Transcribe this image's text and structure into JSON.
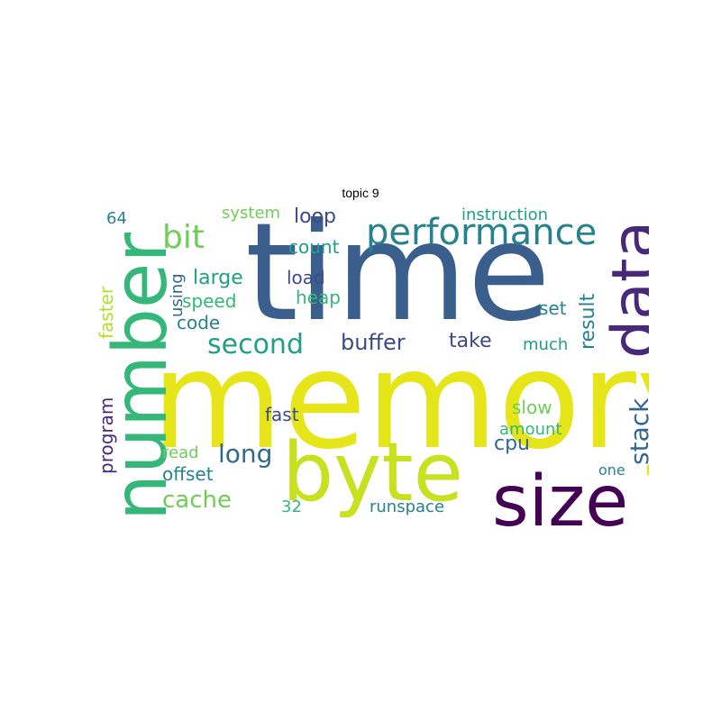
{
  "title": "topic 9",
  "colors": {
    "c1": "#440154",
    "c2": "#482878",
    "c3": "#3e4989",
    "c4": "#31688e",
    "c5": "#26828e",
    "c6": "#1f9e89",
    "c7": "#35b779",
    "c8": "#6ece58",
    "c9": "#b5de2b",
    "c10": "#e3e418"
  },
  "words": [
    {
      "text": "time",
      "color": "#3b5f8d"
    },
    {
      "text": "memory",
      "color": "#e6e51a"
    },
    {
      "text": "byte",
      "color": "#c7e020"
    },
    {
      "text": "size",
      "color": "#440154"
    },
    {
      "text": "number",
      "color": "#35b779"
    },
    {
      "text": "data",
      "color": "#482878"
    },
    {
      "text": "performance",
      "color": "#26828e"
    },
    {
      "text": "second",
      "color": "#1f9e89"
    },
    {
      "text": "bit",
      "color": "#6ece58"
    },
    {
      "text": "long",
      "color": "#31688e"
    },
    {
      "text": "buffer",
      "color": "#3e4989"
    },
    {
      "text": "cache",
      "color": "#6ece58"
    },
    {
      "text": "stack",
      "color": "#31688e"
    },
    {
      "text": "large",
      "color": "#1f9e89"
    },
    {
      "text": "loop",
      "color": "#3e4989"
    },
    {
      "text": "take",
      "color": "#3e4989"
    },
    {
      "text": "cpu",
      "color": "#31688e"
    },
    {
      "text": "result",
      "color": "#26828e"
    },
    {
      "text": "count",
      "color": "#1f9e89"
    },
    {
      "text": "speed",
      "color": "#35b779"
    },
    {
      "text": "code",
      "color": "#26828e"
    },
    {
      "text": "heap",
      "color": "#35b779"
    },
    {
      "text": "load",
      "color": "#3e4989"
    },
    {
      "text": "offset",
      "color": "#26828e"
    },
    {
      "text": "set",
      "color": "#26828e"
    },
    {
      "text": "much",
      "color": "#1f9e89"
    },
    {
      "text": "slow",
      "color": "#6ece58"
    },
    {
      "text": "amount",
      "color": "#35b779"
    },
    {
      "text": "fast",
      "color": "#3e4989"
    },
    {
      "text": "read",
      "color": "#6ece58"
    },
    {
      "text": "program",
      "color": "#482878"
    },
    {
      "text": "faster",
      "color": "#b5de2b"
    },
    {
      "text": "using",
      "color": "#31688e"
    },
    {
      "text": "system",
      "color": "#6ece58"
    },
    {
      "text": "instruction",
      "color": "#1f9e89"
    },
    {
      "text": "64",
      "color": "#26828e"
    },
    {
      "text": "one",
      "color": "#26828e"
    },
    {
      "text": "32",
      "color": "#35b779"
    },
    {
      "text": "runspace",
      "color": "#26828e"
    }
  ]
}
